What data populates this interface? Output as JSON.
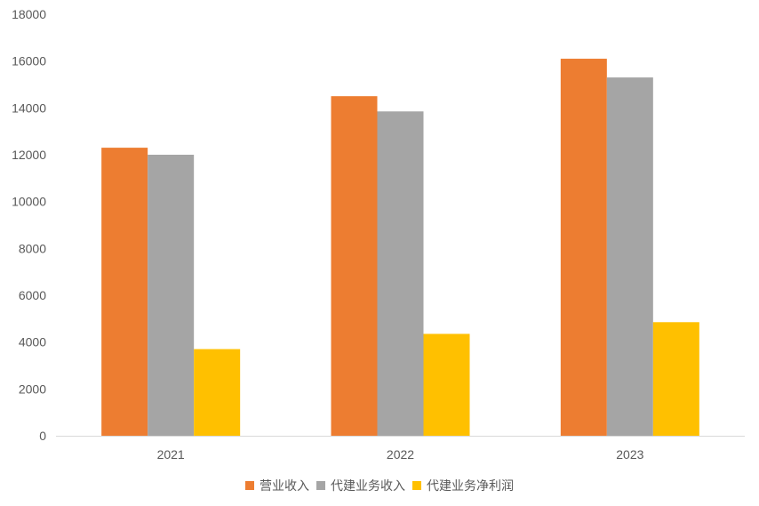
{
  "chart_data": {
    "type": "bar",
    "categories": [
      "2021",
      "2022",
      "2023"
    ],
    "series": [
      {
        "name": "营业收入",
        "values": [
          12300,
          14500,
          16100
        ],
        "color": "#ED7D31"
      },
      {
        "name": "代建业务收入",
        "values": [
          12000,
          13850,
          15300
        ],
        "color": "#A5A5A5"
      },
      {
        "name": "代建业务净利润",
        "values": [
          3700,
          4350,
          4850
        ],
        "color": "#FFC000"
      }
    ],
    "yticks": [
      "0",
      "2000",
      "4000",
      "6000",
      "8000",
      "10000",
      "12000",
      "14000",
      "16000",
      "18000"
    ],
    "ylim": [
      0,
      18000
    ],
    "grid": false,
    "legend": "bottom",
    "axis_color": "#D9D9D9",
    "text_color": "#595959"
  }
}
